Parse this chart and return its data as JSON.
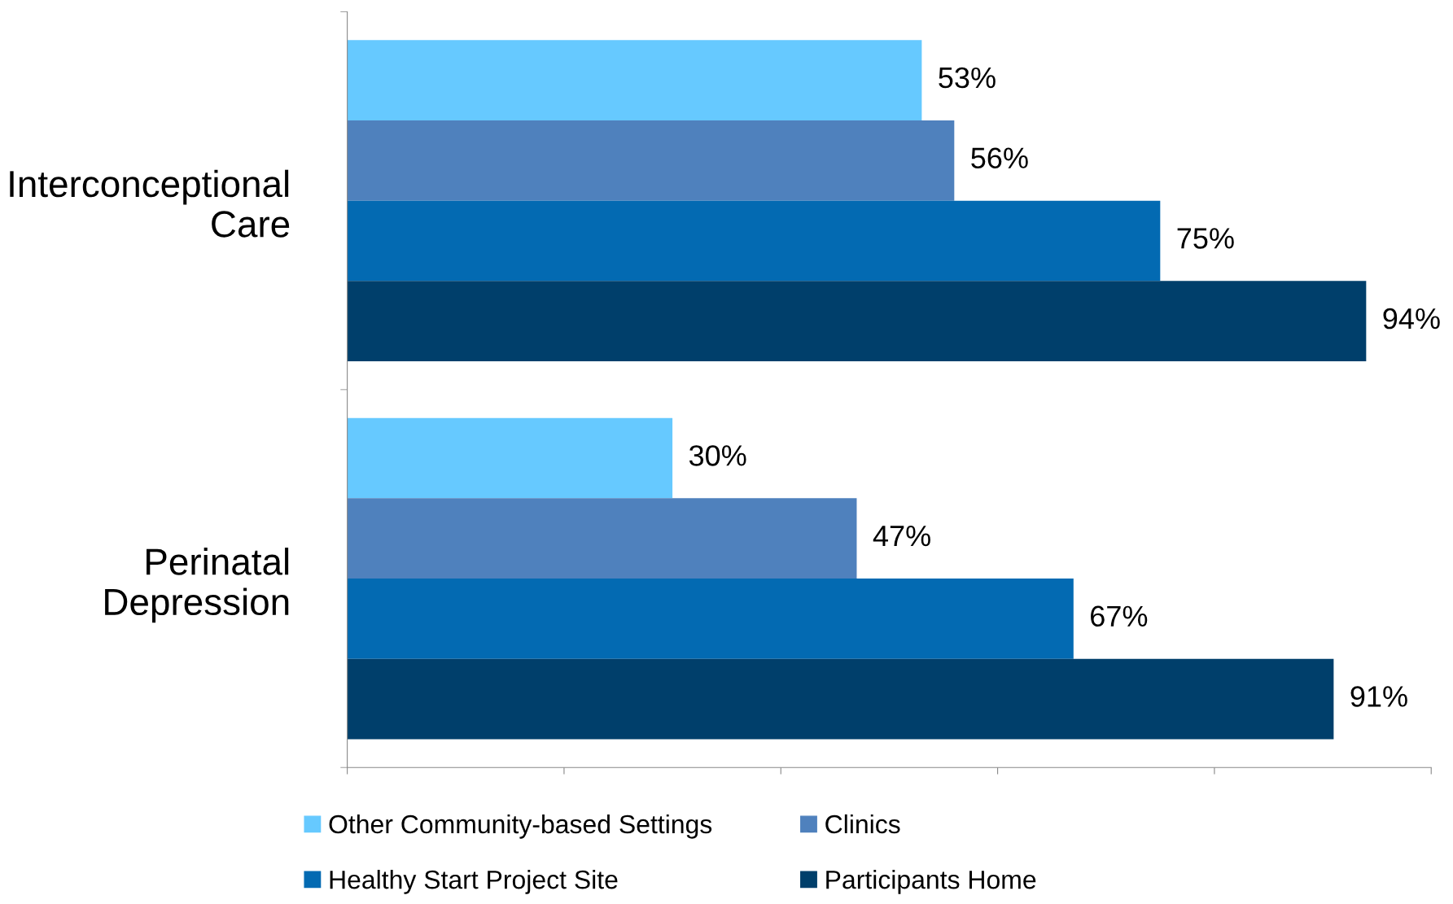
{
  "chart_data": {
    "type": "bar",
    "orientation": "horizontal",
    "categories": [
      "Interconceptional\nCare",
      "Perinatal\nDepression"
    ],
    "series": [
      {
        "name": "Other Community-based Settings",
        "color": "#66c9ff",
        "values": [
          53,
          30
        ],
        "value_labels": [
          "53%",
          "30%"
        ]
      },
      {
        "name": "Clinics",
        "color": "#4f81bd",
        "values": [
          56,
          47
        ],
        "value_labels": [
          "56%",
          "47%"
        ]
      },
      {
        "name": "Healthy Start Project Site",
        "color": "#036ab2",
        "values": [
          75,
          67
        ],
        "value_labels": [
          "75%",
          "67%"
        ]
      },
      {
        "name": "Participants Home",
        "color": "#003f6b",
        "values": [
          94,
          91
        ],
        "value_labels": [
          "94%",
          "91%"
        ]
      }
    ],
    "xlim": [
      0,
      100
    ],
    "xticks": [
      {
        "value": 0,
        "label": null
      },
      {
        "value": 20,
        "label": null
      },
      {
        "value": 40,
        "label": null
      },
      {
        "value": 60,
        "label": null
      },
      {
        "value": 80,
        "label": null
      },
      {
        "value": 100,
        "label": null
      }
    ],
    "tick_labels": "y",
    "grid": false,
    "legend": "bottom"
  }
}
